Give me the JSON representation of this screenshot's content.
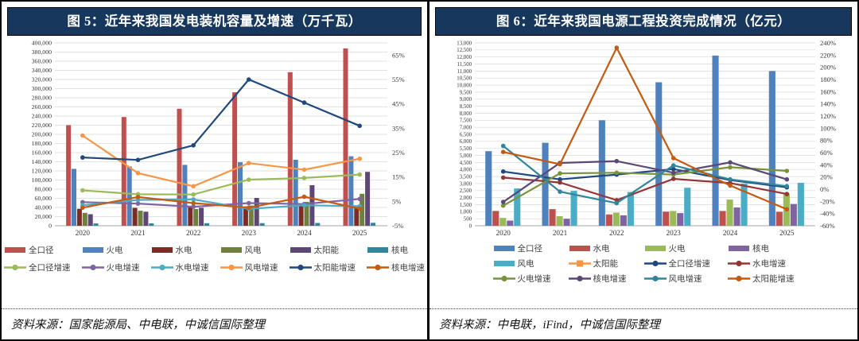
{
  "page": {
    "background": "#FFFFFF",
    "frame_border_color": "#000000",
    "title_bar_color": "#17375D",
    "title_text_color": "#FFFFFF"
  },
  "left": {
    "title": "图 5：近年来我国发电装机容量及增速（万千瓦）",
    "source": "资料来源：国家能源局、中电联，中诚信国际整理"
  },
  "right": {
    "title": "图 6：近年来我国电源工程投资完成情况（亿元）",
    "source": "资料来源：中电联，iFind，中诚信国际整理"
  },
  "chart_data": [
    {
      "type": "bar+line",
      "panel": "left",
      "title": "图 5：近年来我国发电装机容量及增速（万千瓦）",
      "unit": "万千瓦",
      "categories": [
        "2020",
        "2021",
        "2022",
        "2023",
        "2024",
        "2025"
      ],
      "bar_series": [
        {
          "name": "全口径",
          "color": "#C0504D",
          "values": [
            220000,
            238000,
            256000,
            292000,
            336000,
            388000
          ]
        },
        {
          "name": "火电",
          "color": "#4F81BD",
          "values": [
            124500,
            129700,
            133200,
            139000,
            144400,
            152000
          ]
        },
        {
          "name": "水电",
          "color": "#7B2C27",
          "values": [
            37000,
            39100,
            41400,
            42200,
            43600,
            44500
          ]
        },
        {
          "name": "风电",
          "color": "#6E7F3E",
          "values": [
            28200,
            32800,
            36500,
            44100,
            52100,
            70000
          ]
        },
        {
          "name": "太阳能",
          "color": "#5C4776",
          "values": [
            25300,
            30700,
            39300,
            60900,
            88700,
            118000
          ]
        },
        {
          "name": "核电",
          "color": "#31859C",
          "values": [
            5000,
            5300,
            5600,
            5700,
            6100,
            6500
          ]
        }
      ],
      "line_series": [
        {
          "name": "全口径增速",
          "color": "#9BBB59",
          "values": [
            9.5,
            7.9,
            7.8,
            13.9,
            14.6,
            16
          ]
        },
        {
          "name": "火电增速",
          "color": "#8064A2",
          "values": [
            4.7,
            4.1,
            2.8,
            4.3,
            3.9,
            6
          ]
        },
        {
          "name": "水电增速",
          "color": "#4BACC6",
          "values": [
            3.4,
            5.6,
            5.8,
            1.9,
            3.4,
            3
          ]
        },
        {
          "name": "风电增速",
          "color": "#F79646",
          "values": [
            32,
            16.6,
            11.2,
            20.7,
            18,
            22.5
          ]
        },
        {
          "name": "太阳能增速",
          "color": "#1F497D",
          "values": [
            23,
            22,
            28,
            55,
            45.5,
            36
          ]
        },
        {
          "name": "核电增速",
          "color": "#C55A11",
          "values": [
            2.4,
            6.8,
            4.3,
            2.4,
            6.9,
            2
          ]
        }
      ],
      "y_left": {
        "min": 0,
        "max": 400000,
        "step": 20000,
        "thousands": true
      },
      "y_right": {
        "min": -5,
        "max": 70,
        "label_min": -5,
        "label_max": 65,
        "label_step": 10,
        "suffix": "%"
      },
      "grid": true,
      "legend_position": "bottom",
      "legend_columns": 6
    },
    {
      "type": "bar+line",
      "panel": "right",
      "title": "图 6：近年来我国电源工程投资完成情况（亿元）",
      "unit": "亿元",
      "categories": [
        "2020",
        "2021",
        "2022",
        "2023",
        "2024",
        "2025"
      ],
      "bar_series": [
        {
          "name": "全口径",
          "color": "#4F81BD",
          "values": [
            5300,
            5900,
            7500,
            10200,
            12100,
            11000
          ]
        },
        {
          "name": "水电",
          "color": "#C0504D",
          "values": [
            1050,
            1180,
            800,
            1000,
            1050,
            990
          ]
        },
        {
          "name": "火电",
          "color": "#9BBB59",
          "values": [
            560,
            680,
            930,
            1050,
            1860,
            2290
          ]
        },
        {
          "name": "核电",
          "color": "#8064A2",
          "values": [
            370,
            500,
            740,
            900,
            1300,
            1550
          ]
        },
        {
          "name": "风电",
          "color": "#4BACC6",
          "values": [
            2650,
            2480,
            2400,
            2700,
            3000,
            3050
          ]
        },
        {
          "name": "太阳能",
          "color": "#F79646",
          "values": [
            null,
            null,
            null,
            null,
            null,
            null
          ],
          "legend_marker": "square-line"
        }
      ],
      "line_series": [
        {
          "name": "全口径增速",
          "color": "#1F497D",
          "values": [
            29,
            16,
            24,
            33,
            15,
            3
          ]
        },
        {
          "name": "水电增速",
          "color": "#943634",
          "values": [
            19,
            11,
            -18,
            17,
            10,
            -8
          ]
        },
        {
          "name": "火电增速",
          "color": "#77933C",
          "values": [
            -27,
            26,
            27,
            24,
            36,
            30
          ]
        },
        {
          "name": "核电增速",
          "color": "#5C4776",
          "values": [
            -21,
            43,
            46,
            27,
            44,
            16
          ]
        },
        {
          "name": "风电增速",
          "color": "#31859C",
          "values": [
            71,
            -4,
            -23,
            39,
            16,
            5
          ]
        },
        {
          "name": "太阳能增速",
          "color": "#C55A11",
          "values": [
            61,
            41,
            232,
            51,
            6,
            -33
          ]
        }
      ],
      "y_left": {
        "min": 0,
        "max": 13000,
        "step": 500,
        "thousands": true
      },
      "y_right": {
        "min": -60,
        "max": 240,
        "label_min": -60,
        "label_max": 240,
        "label_step": 20,
        "suffix": "%"
      },
      "grid": true,
      "legend_position": "bottom",
      "legend_columns": 4
    }
  ]
}
